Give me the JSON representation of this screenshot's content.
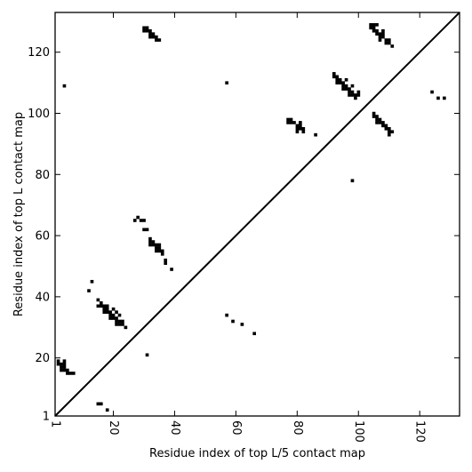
{
  "chart_data": {
    "type": "scatter",
    "xlabel": "Residue index of top L/5 contact map",
    "ylabel": "Residue index of top L contact map",
    "xlim": [
      1,
      133
    ],
    "ylim": [
      1,
      133
    ],
    "x_ticks": [
      1,
      20,
      40,
      60,
      80,
      100,
      120
    ],
    "y_ticks": [
      1,
      20,
      40,
      60,
      80,
      100,
      120
    ],
    "x_tick_labels_rotated": true,
    "diagonal_line": true,
    "marker": "filled-square",
    "marker_color": "#000000",
    "upper_triangle_points": [
      [
        30,
        128
      ],
      [
        31,
        128
      ],
      [
        30,
        127
      ],
      [
        31,
        127
      ],
      [
        32,
        127
      ],
      [
        32,
        126
      ],
      [
        33,
        126
      ],
      [
        32,
        125
      ],
      [
        33,
        125
      ],
      [
        34,
        125
      ],
      [
        34,
        124
      ],
      [
        35,
        124
      ],
      [
        4,
        109
      ],
      [
        57,
        110
      ],
      [
        104,
        129
      ],
      [
        105,
        129
      ],
      [
        106,
        129
      ],
      [
        104,
        128
      ],
      [
        105,
        128
      ],
      [
        105,
        127
      ],
      [
        106,
        127
      ],
      [
        108,
        127
      ],
      [
        106,
        126
      ],
      [
        107,
        126
      ],
      [
        108,
        126
      ],
      [
        107,
        125
      ],
      [
        108,
        125
      ],
      [
        107,
        124
      ],
      [
        109,
        124
      ],
      [
        110,
        124
      ],
      [
        109,
        123
      ],
      [
        110,
        123
      ],
      [
        111,
        122
      ],
      [
        92,
        113
      ],
      [
        92,
        112
      ],
      [
        93,
        112
      ],
      [
        93,
        111
      ],
      [
        94,
        111
      ],
      [
        96,
        111
      ],
      [
        93,
        110
      ],
      [
        94,
        110
      ],
      [
        95,
        110
      ],
      [
        95,
        109
      ],
      [
        96,
        109
      ],
      [
        98,
        109
      ],
      [
        95,
        108
      ],
      [
        96,
        108
      ],
      [
        97,
        108
      ],
      [
        97,
        107
      ],
      [
        98,
        107
      ],
      [
        100,
        107
      ],
      [
        97,
        106
      ],
      [
        98,
        106
      ],
      [
        99,
        106
      ],
      [
        100,
        106
      ],
      [
        99,
        105
      ],
      [
        124,
        107
      ],
      [
        126,
        105
      ],
      [
        128,
        105
      ],
      [
        105,
        100
      ],
      [
        105,
        99
      ],
      [
        106,
        99
      ],
      [
        106,
        98
      ],
      [
        107,
        98
      ],
      [
        106,
        97
      ],
      [
        107,
        97
      ],
      [
        108,
        97
      ],
      [
        108,
        96
      ],
      [
        109,
        96
      ],
      [
        109,
        95
      ],
      [
        110,
        95
      ],
      [
        110,
        94
      ],
      [
        111,
        94
      ],
      [
        110,
        93
      ],
      [
        77,
        98
      ],
      [
        78,
        98
      ],
      [
        77,
        97
      ],
      [
        78,
        97
      ],
      [
        79,
        97
      ],
      [
        81,
        97
      ],
      [
        80,
        96
      ],
      [
        81,
        96
      ],
      [
        80,
        95
      ],
      [
        81,
        95
      ],
      [
        82,
        95
      ],
      [
        80,
        94
      ],
      [
        82,
        94
      ],
      [
        86,
        93
      ],
      [
        98,
        78
      ]
    ],
    "lower_triangle_points": [
      [
        27,
        65
      ],
      [
        28,
        66
      ],
      [
        29,
        65
      ],
      [
        30,
        65
      ],
      [
        30,
        62
      ],
      [
        31,
        62
      ],
      [
        32,
        59
      ],
      [
        32,
        58
      ],
      [
        33,
        58
      ],
      [
        32,
        57
      ],
      [
        33,
        57
      ],
      [
        34,
        57
      ],
      [
        35,
        57
      ],
      [
        34,
        56
      ],
      [
        35,
        56
      ],
      [
        34,
        55
      ],
      [
        35,
        55
      ],
      [
        36,
        55
      ],
      [
        36,
        54
      ],
      [
        37,
        52
      ],
      [
        37,
        51
      ],
      [
        39,
        49
      ],
      [
        13,
        45
      ],
      [
        12,
        42
      ],
      [
        15,
        39
      ],
      [
        16,
        38
      ],
      [
        15,
        37
      ],
      [
        16,
        37
      ],
      [
        17,
        37
      ],
      [
        18,
        37
      ],
      [
        17,
        36
      ],
      [
        18,
        36
      ],
      [
        20,
        36
      ],
      [
        17,
        35
      ],
      [
        18,
        35
      ],
      [
        19,
        35
      ],
      [
        21,
        35
      ],
      [
        19,
        34
      ],
      [
        20,
        34
      ],
      [
        22,
        34
      ],
      [
        19,
        33
      ],
      [
        20,
        33
      ],
      [
        21,
        33
      ],
      [
        21,
        32
      ],
      [
        22,
        32
      ],
      [
        23,
        32
      ],
      [
        21,
        31
      ],
      [
        22,
        31
      ],
      [
        23,
        31
      ],
      [
        24,
        30
      ],
      [
        2,
        19
      ],
      [
        4,
        19
      ],
      [
        2,
        18
      ],
      [
        3,
        18
      ],
      [
        4,
        18
      ],
      [
        3,
        17
      ],
      [
        4,
        17
      ],
      [
        3,
        16
      ],
      [
        4,
        16
      ],
      [
        5,
        16
      ],
      [
        5,
        15
      ],
      [
        6,
        15
      ],
      [
        7,
        15
      ],
      [
        31,
        21
      ],
      [
        15,
        5
      ],
      [
        16,
        5
      ],
      [
        18,
        3
      ],
      [
        57,
        34
      ],
      [
        59,
        32
      ],
      [
        62,
        31
      ],
      [
        66,
        28
      ]
    ]
  }
}
